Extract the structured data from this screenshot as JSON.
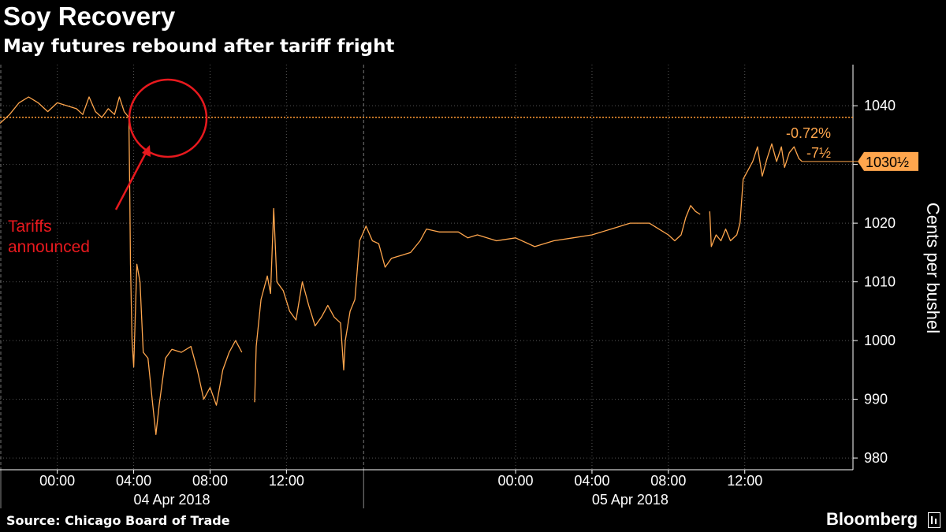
{
  "header": {
    "title": "Soy Recovery",
    "subtitle": "May futures rebound after tariff fright"
  },
  "footer": {
    "source": "Source: Chicago Board of Trade",
    "brand": "Bloomberg",
    "brand_icon": "bloomberg-terminal-icon"
  },
  "colors": {
    "background": "#000000",
    "series": "#ffa64d",
    "reference_line": "#ff9933",
    "annotation": "#e8191e",
    "axis": "#ffffff"
  },
  "chart_data": {
    "type": "line",
    "title": "Soy Recovery",
    "subtitle": "May futures rebound after tariff fright",
    "ylabel": "Cents per bushel",
    "ylim": [
      978,
      1047
    ],
    "y_ticks": [
      980,
      990,
      1000,
      1010,
      1020,
      1030,
      1040
    ],
    "y_tick_labels": [
      "980",
      "990",
      "1000",
      "1010",
      "1020",
      "1030",
      "1040"
    ],
    "x_tick_labels": [
      "00:00",
      "04:00",
      "08:00",
      "12:00",
      "00:00",
      "04:00",
      "08:00",
      "12:00"
    ],
    "x_date_labels": [
      "04 Apr 2018",
      "05 Apr 2018"
    ],
    "grid": true,
    "reference_value": 1038,
    "last_value": 1030.5,
    "last_value_label": "1030½",
    "change_percent": "-0.72%",
    "change_value": "-7½",
    "annotation": "Tariffs announced",
    "series": [
      {
        "segments": [
          [
            [
              "04/03 21:00",
              1037.0
            ],
            [
              "04/03 21:30",
              1038.5
            ],
            [
              "04/03 22:00",
              1040.5
            ],
            [
              "04/03 22:30",
              1041.5
            ],
            [
              "04/03 23:00",
              1040.5
            ],
            [
              "04/03 23:30",
              1039.0
            ],
            [
              "04/04 00:00",
              1040.5
            ],
            [
              "04/04 00:30",
              1040.0
            ],
            [
              "04/04 01:00",
              1039.5
            ],
            [
              "04/04 01:20",
              1038.5
            ],
            [
              "04/04 01:40",
              1041.5
            ],
            [
              "04/04 02:00",
              1039.0
            ],
            [
              "04/04 02:20",
              1038.0
            ],
            [
              "04/04 02:40",
              1039.5
            ],
            [
              "04/04 03:00",
              1038.5
            ],
            [
              "04/04 03:15",
              1041.5
            ],
            [
              "04/04 03:30",
              1039.0
            ],
            [
              "04/04 03:45",
              1038.0
            ],
            [
              "04/04 03:48",
              1024.0
            ],
            [
              "04/04 03:50",
              1013.0
            ],
            [
              "04/04 03:55",
              1000.0
            ],
            [
              "04/04 04:00",
              995.5
            ],
            [
              "04/04 04:10",
              1013.0
            ],
            [
              "04/04 04:20",
              1010.0
            ],
            [
              "04/04 04:30",
              998.0
            ],
            [
              "04/04 04:45",
              997.0
            ],
            [
              "04/04 05:00",
              989.0
            ],
            [
              "04/04 05:10",
              984.0
            ],
            [
              "04/04 05:20",
              989.0
            ],
            [
              "04/04 05:40",
              997.0
            ],
            [
              "04/04 06:00",
              998.5
            ],
            [
              "04/04 06:30",
              998.0
            ],
            [
              "04/04 07:00",
              999.0
            ],
            [
              "04/04 07:20",
              995.0
            ],
            [
              "04/04 07:40",
              990.0
            ],
            [
              "04/04 08:00",
              992.0
            ],
            [
              "04/04 08:20",
              989.0
            ],
            [
              "04/04 08:40",
              995.0
            ],
            [
              "04/04 09:00",
              998.0
            ],
            [
              "04/04 09:20",
              1000.0
            ],
            [
              "04/04 09:40",
              998.0
            ]
          ],
          [
            [
              "04/04 10:20",
              989.5
            ],
            [
              "04/04 10:25",
              999.0
            ],
            [
              "04/04 10:40",
              1007.0
            ],
            [
              "04/04 11:00",
              1011.0
            ],
            [
              "04/04 11:10",
              1008.0
            ],
            [
              "04/04 11:20",
              1022.5
            ],
            [
              "04/04 11:30",
              1010.0
            ],
            [
              "04/04 11:50",
              1008.5
            ],
            [
              "04/04 12:10",
              1005.0
            ],
            [
              "04/04 12:30",
              1003.5
            ],
            [
              "04/04 12:50",
              1010.0
            ],
            [
              "04/04 13:10",
              1006.0
            ],
            [
              "04/04 13:30",
              1002.5
            ],
            [
              "04/04 13:50",
              1004.0
            ],
            [
              "04/04 14:10",
              1006.0
            ],
            [
              "04/04 14:30",
              1004.0
            ],
            [
              "04/04 14:50",
              1003.0
            ],
            [
              "04/04 15:00",
              995.0
            ],
            [
              "04/04 15:05",
              1000.0
            ],
            [
              "04/04 15:20",
              1005.0
            ],
            [
              "04/04 15:35",
              1007.0
            ],
            [
              "04/04 15:50",
              1017.0
            ],
            [
              "04/04 16:10",
              1019.5
            ],
            [
              "04/04 16:30",
              1017.0
            ],
            [
              "04/04 16:50",
              1016.5
            ],
            [
              "04/04 17:10",
              1012.5
            ],
            [
              "04/04 17:30",
              1014.0
            ],
            [
              "04/04 18:00",
              1014.5
            ],
            [
              "04/04 18:30",
              1015.0
            ],
            [
              "04/04 19:00",
              1017.0
            ],
            [
              "04/04 19:20",
              1019.0
            ],
            [
              "04/04 20:00",
              1018.5
            ],
            [
              "04/04 21:00",
              1018.5
            ],
            [
              "04/04 21:30",
              1017.5
            ],
            [
              "04/04 22:00",
              1018.0
            ],
            [
              "04/04 23:00",
              1017.0
            ],
            [
              "04/05 00:00",
              1017.5
            ],
            [
              "04/05 01:00",
              1016.0
            ],
            [
              "04/05 02:00",
              1017.0
            ],
            [
              "04/05 03:00",
              1017.5
            ],
            [
              "04/05 04:00",
              1018.0
            ],
            [
              "04/05 05:00",
              1019.0
            ],
            [
              "04/05 06:00",
              1020.0
            ],
            [
              "04/05 07:00",
              1020.0
            ],
            [
              "04/05 07:30",
              1019.0
            ],
            [
              "04/05 08:00",
              1018.0
            ],
            [
              "04/05 08:20",
              1017.0
            ],
            [
              "04/05 08:40",
              1018.0
            ],
            [
              "04/05 08:55",
              1021.0
            ],
            [
              "04/05 09:10",
              1023.0
            ],
            [
              "04/05 09:25",
              1022.0
            ],
            [
              "04/05 09:40",
              1021.5
            ]
          ],
          [
            [
              "04/05 10:10",
              1022.0
            ],
            [
              "04/05 10:15",
              1016.0
            ],
            [
              "04/05 10:30",
              1018.0
            ],
            [
              "04/05 10:45",
              1017.0
            ],
            [
              "04/05 11:00",
              1019.0
            ],
            [
              "04/05 11:15",
              1017.0
            ],
            [
              "04/05 11:35",
              1018.0
            ],
            [
              "04/05 11:45",
              1020.0
            ],
            [
              "04/05 11:55",
              1027.5
            ],
            [
              "04/05 12:10",
              1029.0
            ],
            [
              "04/05 12:25",
              1030.5
            ],
            [
              "04/05 12:40",
              1033.0
            ],
            [
              "04/05 12:55",
              1028.0
            ],
            [
              "04/05 13:10",
              1031.0
            ],
            [
              "04/05 13:25",
              1033.5
            ],
            [
              "04/05 13:40",
              1030.5
            ],
            [
              "04/05 13:55",
              1033.0
            ],
            [
              "04/05 14:05",
              1029.5
            ],
            [
              "04/05 14:20",
              1032.0
            ],
            [
              "04/05 14:35",
              1033.0
            ],
            [
              "04/05 14:50",
              1031.0
            ],
            [
              "04/05 15:00",
              1030.5
            ]
          ]
        ]
      }
    ]
  }
}
